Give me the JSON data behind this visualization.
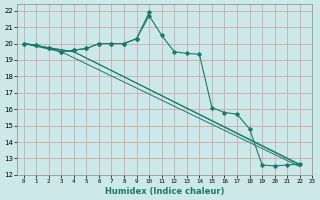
{
  "xlabel": "Humidex (Indice chaleur)",
  "bg_color": "#cce8e8",
  "line_color": "#1a7a6a",
  "grid_color": "#c8a0a0",
  "xlim": [
    -0.5,
    23
  ],
  "ylim": [
    12,
    22.4
  ],
  "xticks": [
    0,
    1,
    2,
    3,
    4,
    5,
    6,
    7,
    8,
    9,
    10,
    11,
    12,
    13,
    14,
    15,
    16,
    17,
    18,
    19,
    20,
    21,
    22,
    23
  ],
  "yticks": [
    12,
    13,
    14,
    15,
    16,
    17,
    18,
    19,
    20,
    21,
    22
  ],
  "curve1_x": [
    0,
    1,
    2,
    3,
    4,
    5,
    6,
    7,
    8,
    9,
    10,
    11,
    12,
    13,
    14,
    15,
    16,
    17,
    18,
    19,
    20,
    21,
    22
  ],
  "curve1_y": [
    20.0,
    19.9,
    19.7,
    19.5,
    19.6,
    19.7,
    20.0,
    20.0,
    20.0,
    20.3,
    21.7,
    20.5,
    19.5,
    19.4,
    19.35,
    16.1,
    15.8,
    15.7,
    14.8,
    12.6,
    12.55,
    12.6,
    12.65
  ],
  "curve2_x": [
    0,
    1,
    2,
    3,
    4,
    5,
    6,
    7,
    8,
    9,
    10
  ],
  "curve2_y": [
    20.0,
    19.9,
    19.7,
    19.5,
    19.6,
    19.7,
    20.0,
    20.0,
    20.0,
    20.3,
    21.9
  ],
  "line3_x": [
    0,
    3,
    22
  ],
  "line3_y": [
    20.0,
    19.5,
    12.5
  ],
  "line4_x": [
    0,
    4,
    22
  ],
  "line4_y": [
    20.0,
    19.5,
    12.6
  ],
  "line5_x": [
    0,
    4,
    22
  ],
  "line5_y": [
    20.0,
    19.5,
    12.65
  ]
}
